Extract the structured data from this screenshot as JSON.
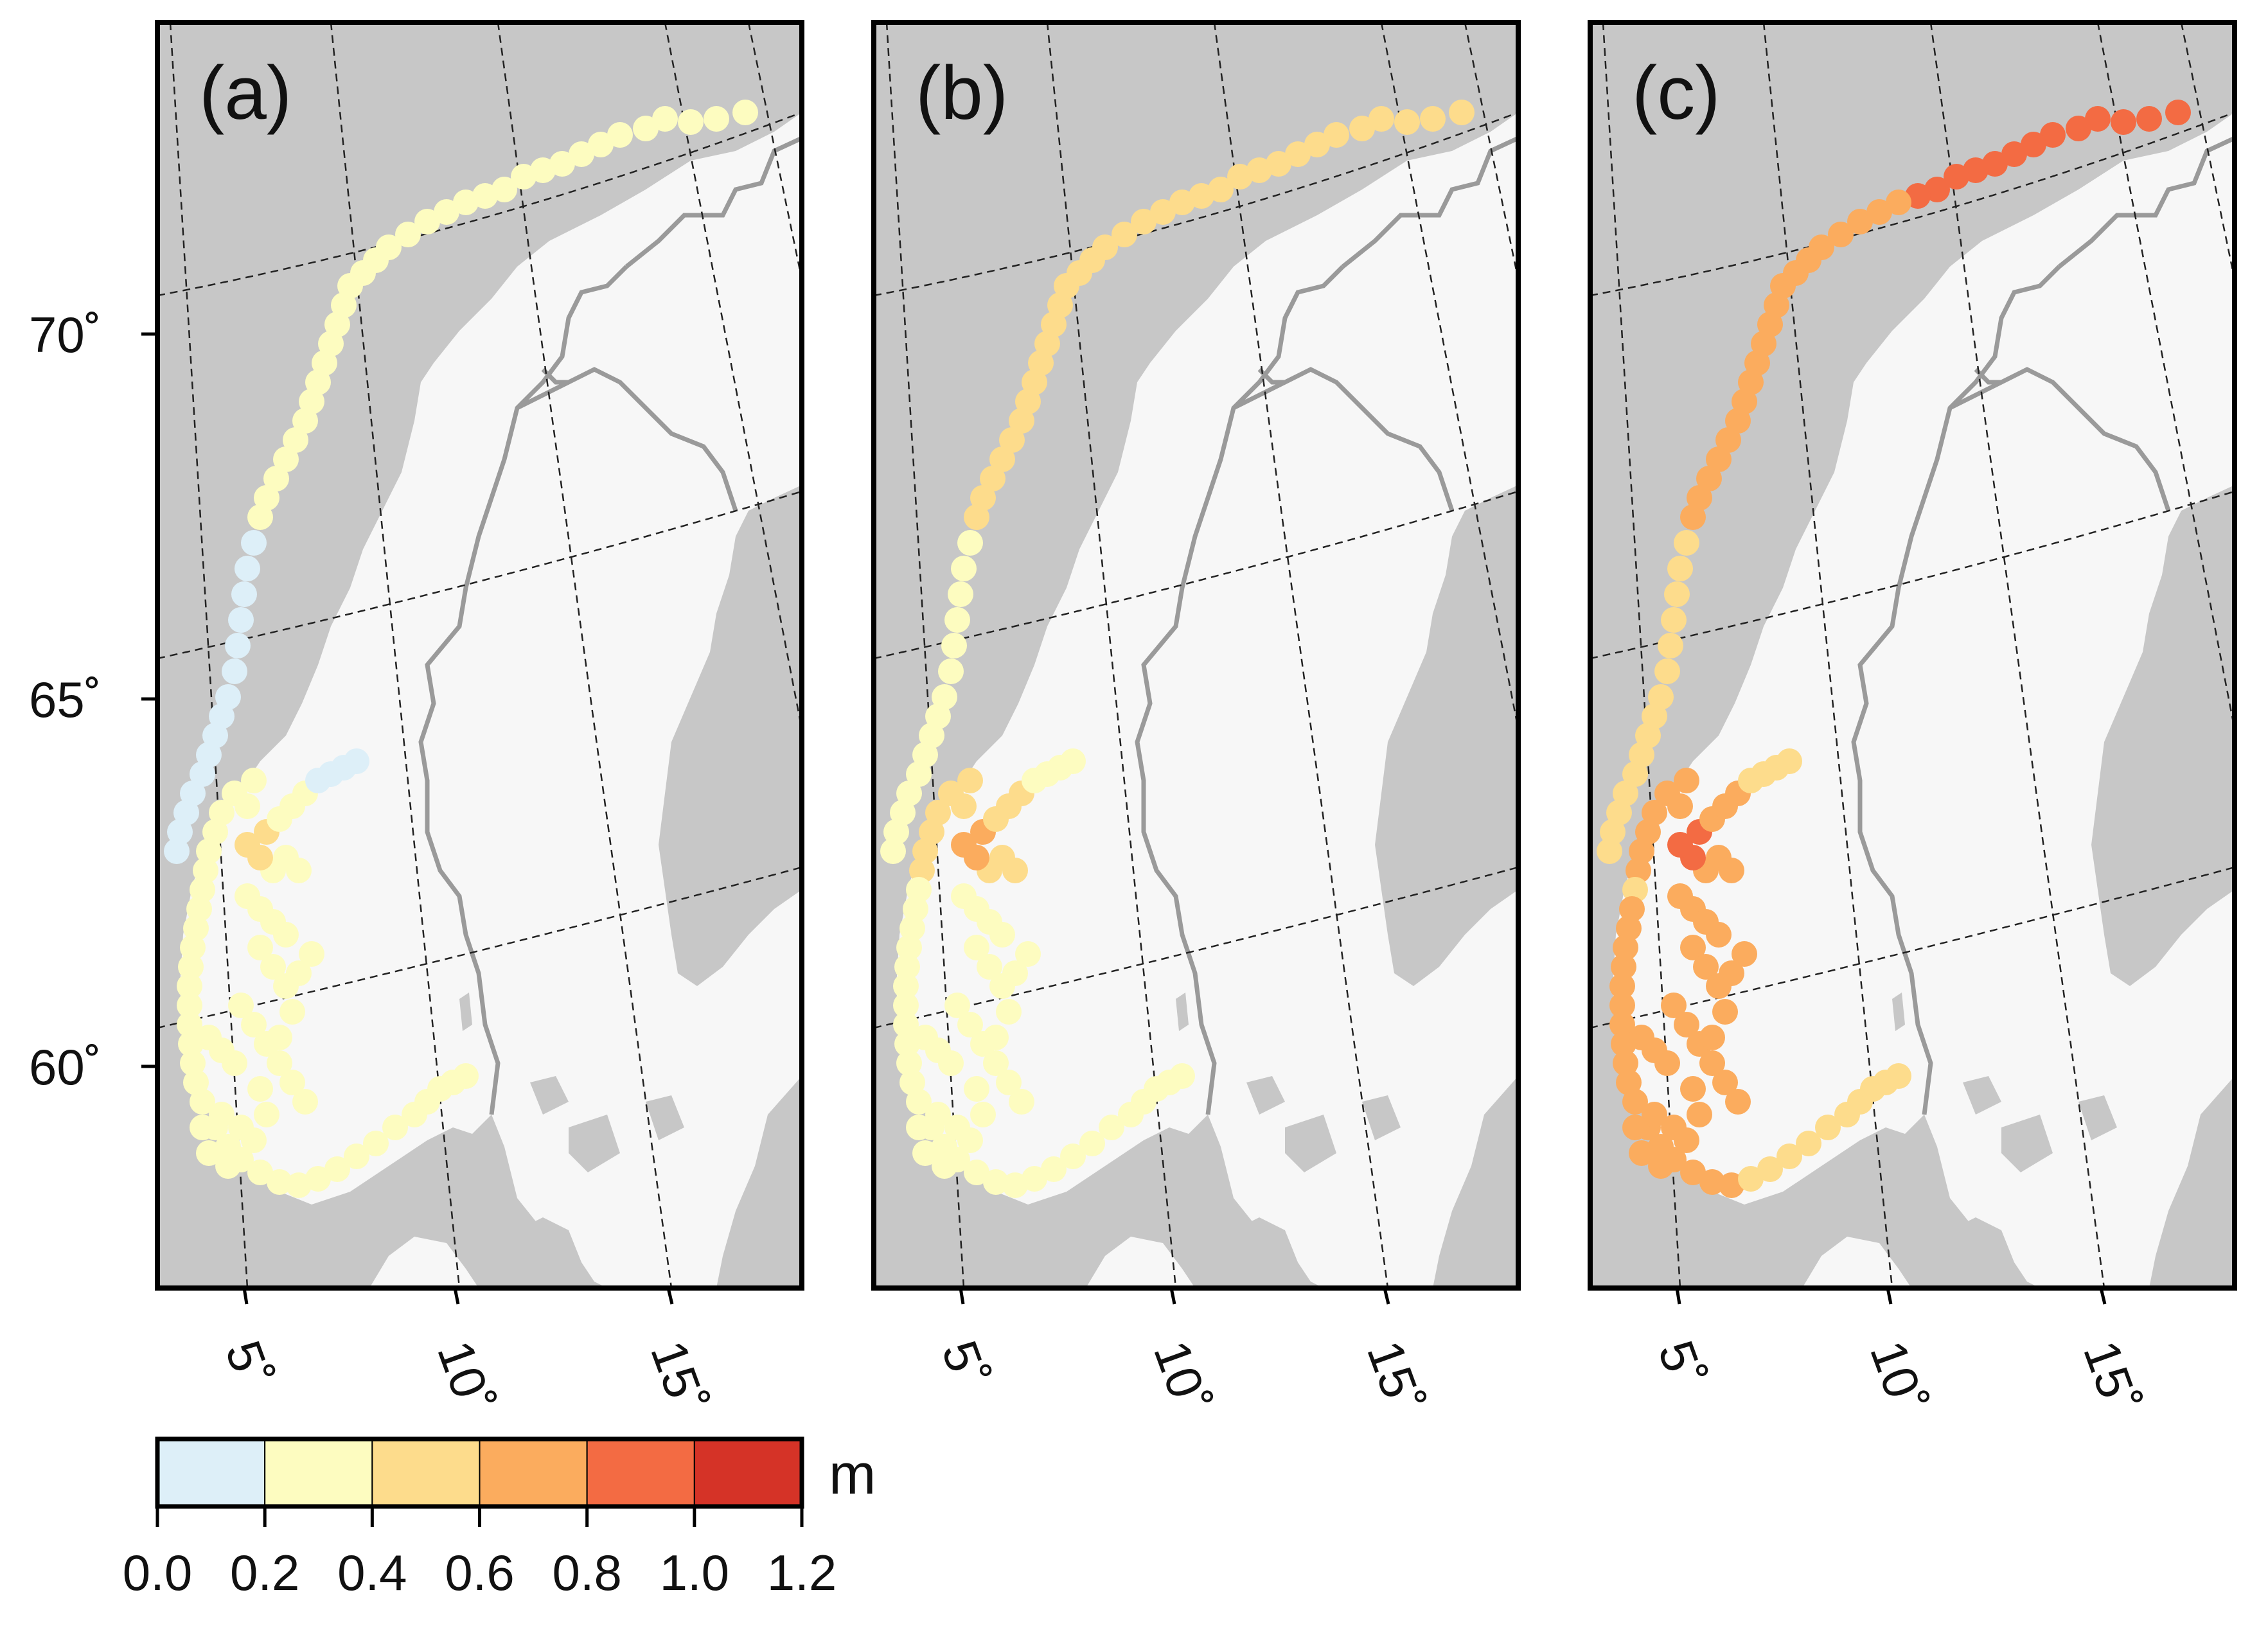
{
  "panels": [
    {
      "label": "(a)",
      "offsets": [
        0,
        0,
        0
      ]
    },
    {
      "label": "(b)",
      "offsets": [
        1,
        1,
        0
      ]
    },
    {
      "label": "(c)",
      "offsets": [
        2,
        2,
        1
      ]
    }
  ],
  "latitude_labels": [
    "70˚",
    "65˚",
    "60˚"
  ],
  "longitude_labels": [
    "5˚",
    "10˚",
    "15˚"
  ],
  "colorbar": {
    "unit": "m",
    "ticks": [
      "0.0",
      "0.2",
      "0.4",
      "0.6",
      "0.8",
      "1.0",
      "1.2"
    ],
    "bins": [
      {
        "from": 0.0,
        "to": 0.2,
        "color": "#ddeff8"
      },
      {
        "from": 0.2,
        "to": 0.4,
        "color": "#fdfcc0"
      },
      {
        "from": 0.4,
        "to": 0.6,
        "color": "#fddc8c"
      },
      {
        "from": 0.6,
        "to": 0.8,
        "color": "#fbac5e"
      },
      {
        "from": 0.8,
        "to": 1.0,
        "color": "#f36b43"
      },
      {
        "from": 1.0,
        "to": 1.2,
        "color": "#d53327"
      }
    ]
  },
  "colors": {
    "ocean": "#c7c7c7",
    "land": "#f7f7f7",
    "lakes": "#c7c7c7",
    "border": "#9a9a9a",
    "graticule": "#222222",
    "frame": "#000000"
  },
  "station_bins_panel_a": [
    1,
    1,
    1,
    1,
    1,
    1,
    1,
    1,
    1,
    1,
    1,
    1,
    1,
    1,
    1,
    1,
    1,
    1,
    1,
    1,
    1,
    1,
    1,
    1,
    1,
    1,
    1,
    1,
    1,
    1,
    1,
    1,
    1,
    0,
    0,
    0,
    0,
    0,
    0,
    0,
    0,
    0,
    0,
    0,
    0,
    0,
    0,
    0,
    1,
    1,
    1,
    1,
    1,
    1,
    1,
    1,
    1,
    1,
    1,
    1,
    1,
    1,
    1,
    1,
    1,
    1,
    1,
    1,
    1,
    1,
    1,
    1,
    1,
    1,
    1,
    1,
    1,
    1,
    1,
    1,
    1,
    1,
    1,
    1,
    1,
    1,
    1,
    1,
    1,
    1,
    1,
    1,
    1,
    1,
    1,
    1,
    1,
    1,
    1,
    1,
    1,
    1,
    1,
    1,
    1,
    1,
    1,
    1,
    1,
    1,
    2,
    2,
    2,
    1,
    1,
    1,
    0,
    0,
    0,
    0,
    1,
    1,
    1,
    1,
    1,
    1
  ]
}
